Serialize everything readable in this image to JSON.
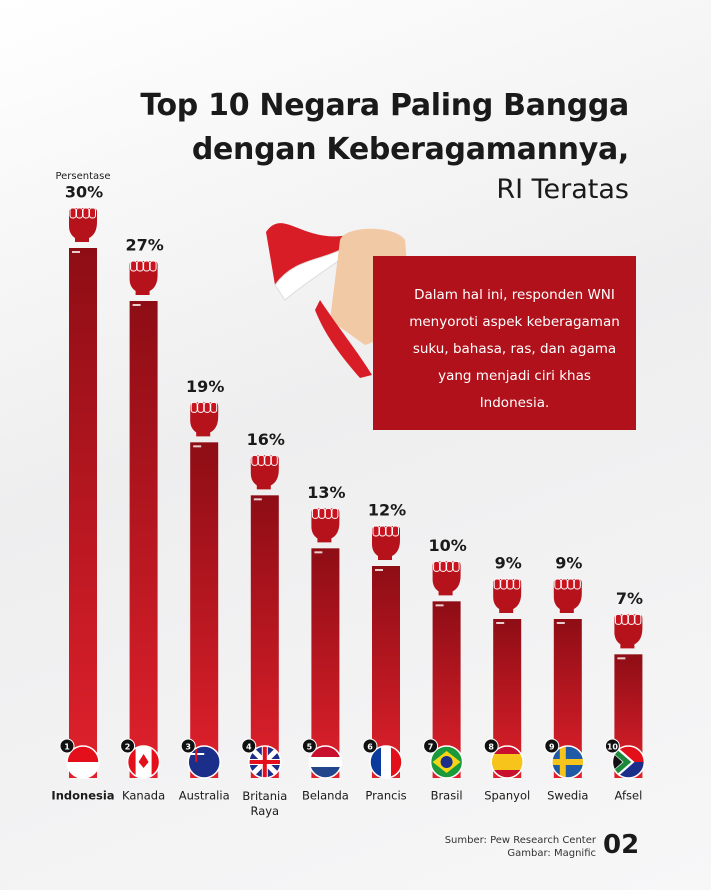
{
  "chart_data": {
    "type": "bar",
    "title": [
      "Top 10 Negara Paling Bangga",
      "dengan Keberagamannya,"
    ],
    "subtitle": "RI Teratas",
    "y_label": "Persentase",
    "annotation": "Dalam hal ini, responden WNI menyoroti aspek keberagaman suku, bahasa, ras, dan agama yang menjadi ciri khas Indonesia.",
    "categories": [
      "Indonesia",
      "Kanada",
      "Australia",
      "Britania Raya",
      "Belanda",
      "Prancis",
      "Brasil",
      "Spanyol",
      "Swedia",
      "Afsel"
    ],
    "ranks": [
      1,
      2,
      3,
      4,
      5,
      6,
      7,
      8,
      9,
      10
    ],
    "values": [
      30,
      27,
      19,
      16,
      13,
      12,
      10,
      9,
      9,
      7
    ],
    "value_labels": [
      "30%",
      "27%",
      "19%",
      "16%",
      "13%",
      "12%",
      "10%",
      "9%",
      "9%",
      "7%"
    ],
    "color": "#b5121b",
    "source": [
      "Sumber: Pew Research Center",
      "Gambar: Magnific"
    ],
    "page_number": "02"
  }
}
